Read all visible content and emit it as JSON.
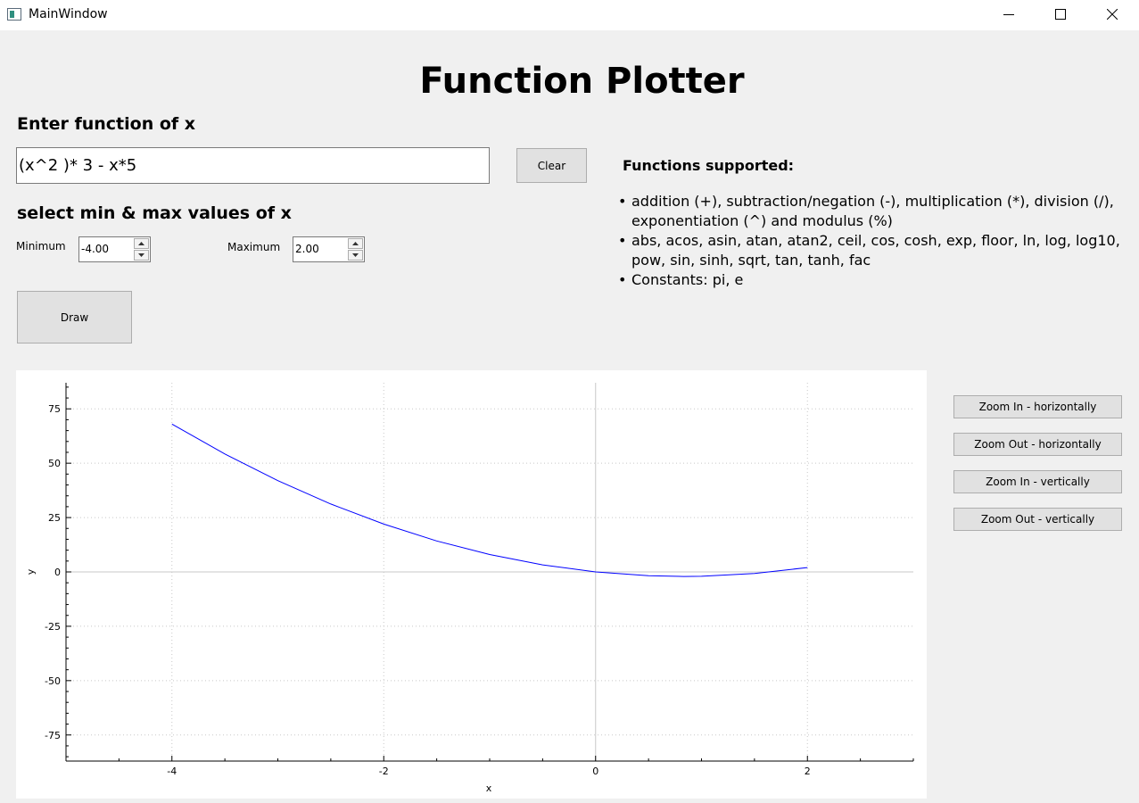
{
  "window": {
    "title": "MainWindow",
    "controls": {
      "minimize": "minimize-icon",
      "maximize": "maximize-icon",
      "close": "close-icon"
    }
  },
  "header": {
    "title": "Function Plotter"
  },
  "function_section": {
    "label": "Enter function of x",
    "input_value": "(x^2 )* 3 - x*5",
    "clear_label": "Clear"
  },
  "range_section": {
    "label": "select min & max values of x",
    "min_label": "Minimum",
    "min_value": "-4.00",
    "max_label": "Maximum",
    "max_value": "2.00",
    "draw_label": "Draw"
  },
  "supported": {
    "title": "Functions supported:",
    "items": [
      "addition (+), subtraction/negation (-), multiplication (*), division (/), exponentiation (^) and modulus (%)",
      "abs, acos, asin, atan, atan2, ceil, cos, cosh, exp, floor, ln, log, log10, pow, sin, sinh, sqrt, tan, tanh, fac",
      "Constants: pi, e"
    ]
  },
  "zoom": {
    "in_h": "Zoom In - horizontally",
    "out_h": "Zoom Out - horizontally",
    "in_v": "Zoom In - vertically",
    "out_v": "Zoom Out - vertically"
  },
  "chart_data": {
    "type": "line",
    "function": "3*x^2 - 5*x",
    "x_range": [
      -4,
      2
    ],
    "xlabel": "x",
    "ylabel": "y",
    "xlim": [
      -5,
      3
    ],
    "ylim": [
      -87,
      87
    ],
    "x_ticks": [
      -4,
      -2,
      0,
      2
    ],
    "y_ticks": [
      -75,
      -50,
      -25,
      0,
      25,
      50,
      75
    ],
    "grid": true,
    "line_color": "#0000ff",
    "series": [
      {
        "x": [
          -4,
          -3.5,
          -3,
          -2.5,
          -2,
          -1.5,
          -1,
          -0.5,
          0,
          0.5,
          0.833,
          1,
          1.5,
          2
        ],
        "y": [
          68,
          54.25,
          42,
          31.25,
          22,
          14.25,
          8,
          3.25,
          0,
          -1.75,
          -2.08,
          -2,
          -0.75,
          2
        ]
      }
    ]
  }
}
